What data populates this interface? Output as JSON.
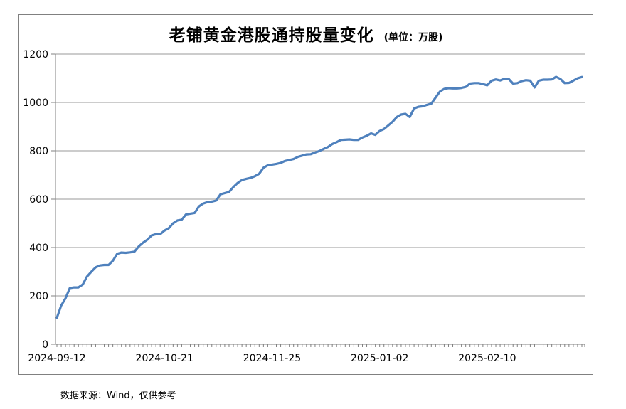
{
  "title": {
    "text": "老铺黄金港股通持股量变化",
    "unit": "(单位：万股)"
  },
  "footer": {
    "source_note": "数据来源：Wind，仅供参考"
  },
  "colors": {
    "line": "#4F81BD",
    "grid": "#9a9a9a",
    "axis": "#808080",
    "frame": "#808080",
    "text": "#000000"
  },
  "chart_data": {
    "type": "line",
    "title": "老铺黄金港股通持股量变化",
    "unit_label": "(单位：万股)",
    "xlabel": "",
    "ylabel": "",
    "ylim": [
      0,
      1200
    ],
    "y_ticks": [
      0,
      200,
      400,
      600,
      800,
      1000,
      1200
    ],
    "grid": "horizontal",
    "legend": "none",
    "x_tick_labels": [
      {
        "index": 0,
        "label": "2024-09-12"
      },
      {
        "index": 25,
        "label": "2024-10-21"
      },
      {
        "index": 50,
        "label": "2024-11-25"
      },
      {
        "index": 75,
        "label": "2025-01-02"
      },
      {
        "index": 100,
        "label": "2025-02-10"
      }
    ],
    "values": [
      110,
      160,
      190,
      232,
      235,
      235,
      247,
      280,
      300,
      318,
      326,
      328,
      328,
      345,
      374,
      379,
      378,
      380,
      383,
      404,
      420,
      432,
      450,
      455,
      455,
      470,
      480,
      500,
      512,
      515,
      537,
      540,
      543,
      570,
      582,
      588,
      590,
      594,
      620,
      625,
      630,
      650,
      667,
      679,
      684,
      688,
      695,
      705,
      730,
      740,
      743,
      746,
      750,
      758,
      762,
      766,
      775,
      780,
      785,
      786,
      793,
      799,
      808,
      816,
      828,
      836,
      845,
      846,
      847,
      845,
      845,
      855,
      862,
      872,
      866,
      882,
      890,
      905,
      920,
      940,
      950,
      953,
      940,
      975,
      982,
      984,
      990,
      995,
      1020,
      1045,
      1056,
      1059,
      1058,
      1058,
      1060,
      1064,
      1078,
      1080,
      1080,
      1076,
      1071,
      1090,
      1095,
      1091,
      1098,
      1097,
      1078,
      1080,
      1088,
      1092,
      1090,
      1062,
      1090,
      1094,
      1094,
      1095,
      1106,
      1097,
      1080,
      1081,
      1090,
      1100,
      1105
    ]
  }
}
